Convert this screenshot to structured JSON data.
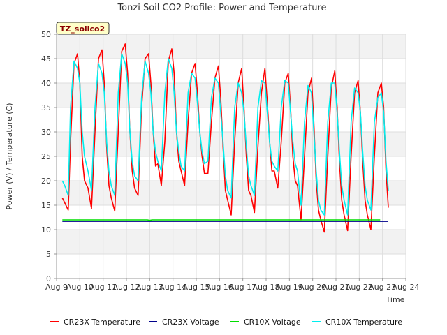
{
  "chart_data": {
    "type": "line",
    "title": "Tonzi Soil CO2 Profile: Power and Temperature",
    "tag": "TZ_soilco2",
    "xlabel": "Time",
    "ylabel": "Power (V) / Temperature (C)",
    "ylim": [
      0,
      50
    ],
    "xlim": [
      9,
      24
    ],
    "yticks": [
      0,
      5,
      10,
      15,
      20,
      25,
      30,
      35,
      40,
      45,
      50
    ],
    "xticks": [
      9,
      10,
      11,
      12,
      13,
      14,
      15,
      16,
      17,
      18,
      19,
      20,
      21,
      22,
      23,
      24
    ],
    "xtick_labels": [
      "Aug 9",
      "Aug 10",
      "Aug 11",
      "Aug 12",
      "Aug 13",
      "Aug 14",
      "Aug 15",
      "Aug 16",
      "Aug 17",
      "Aug 18",
      "Aug 19",
      "Aug 20",
      "Aug 21",
      "Aug 22",
      "Aug 23",
      "Aug 24"
    ],
    "grid": true,
    "legend_position": "bottom",
    "series": [
      {
        "name": "CR23X Temperature",
        "color": "#ff0000",
        "x": [
          9.25,
          9.35,
          9.5,
          9.6,
          9.75,
          9.9,
          10.0,
          10.1,
          10.2,
          10.35,
          10.5,
          10.65,
          10.8,
          10.95,
          11.05,
          11.15,
          11.25,
          11.35,
          11.5,
          11.65,
          11.8,
          11.95,
          12.05,
          12.15,
          12.25,
          12.35,
          12.5,
          12.65,
          12.8,
          12.95,
          13.05,
          13.15,
          13.25,
          13.35,
          13.5,
          13.65,
          13.8,
          13.95,
          14.05,
          14.15,
          14.25,
          14.35,
          14.5,
          14.65,
          14.8,
          14.95,
          15.05,
          15.15,
          15.25,
          15.35,
          15.5,
          15.65,
          15.8,
          15.95,
          16.05,
          16.15,
          16.25,
          16.35,
          16.5,
          16.65,
          16.8,
          16.95,
          17.05,
          17.15,
          17.25,
          17.35,
          17.5,
          17.65,
          17.8,
          17.95,
          18.05,
          18.15,
          18.25,
          18.35,
          18.5,
          18.65,
          18.8,
          18.95,
          19.05,
          19.15,
          19.25,
          19.35,
          19.5,
          19.65,
          19.8,
          19.95,
          20.05,
          20.15,
          20.25,
          20.35,
          20.5,
          20.65,
          20.8,
          20.95,
          21.05,
          21.15,
          21.25,
          21.35,
          21.5,
          21.65,
          21.8,
          21.95,
          22.05,
          22.15,
          22.25,
          22.35,
          22.5,
          22.65,
          22.8,
          22.95,
          23.05,
          23.15,
          23.25
        ],
        "values": [
          16.5,
          15.5,
          14.0,
          28.0,
          44.0,
          46.0,
          40.0,
          25.0,
          20.0,
          18.5,
          14.3,
          30.0,
          45.0,
          46.8,
          40.0,
          27.0,
          19.0,
          16.5,
          13.8,
          30.0,
          46.5,
          48.0,
          42.0,
          30.0,
          22.0,
          18.5,
          17.0,
          35.0,
          45.0,
          46.0,
          40.0,
          30.0,
          23.0,
          23.5,
          19.0,
          28.0,
          44.5,
          47.0,
          42.0,
          30.0,
          24.0,
          22.0,
          19.0,
          32.0,
          42.0,
          44.0,
          38.0,
          30.0,
          25.0,
          21.5,
          21.5,
          32.0,
          41.0,
          43.5,
          37.0,
          27.0,
          18.0,
          16.0,
          13.0,
          28.0,
          40.0,
          43.0,
          35.0,
          25.0,
          18.0,
          17.0,
          13.5,
          27.0,
          38.0,
          43.0,
          36.0,
          28.0,
          22.0,
          22.0,
          18.5,
          28.0,
          40.0,
          42.0,
          35.0,
          25.0,
          20.0,
          19.0,
          12.0,
          25.0,
          38.0,
          41.0,
          32.0,
          20.0,
          14.0,
          12.0,
          9.5,
          25.0,
          39.0,
          42.5,
          35.0,
          24.0,
          16.0,
          13.0,
          9.8,
          25.0,
          38.0,
          40.5,
          34.0,
          24.0,
          16.0,
          13.0,
          10.0,
          25.0,
          38.0,
          40.0,
          35.0,
          22.0,
          14.5
        ]
      },
      {
        "name": "CR23X Voltage",
        "color": "#00008b",
        "x": [
          9.25,
          23.25
        ],
        "values": [
          11.7,
          11.7
        ]
      },
      {
        "name": "CR10X Voltage",
        "color": "#00dd00",
        "x": [
          9.25,
          12.9,
          13.0,
          13.1,
          22.9
        ],
        "values": [
          12.0,
          12.0,
          11.9,
          12.0,
          12.0
        ]
      },
      {
        "name": "CR10X Temperature",
        "color": "#00eeee",
        "x": [
          9.25,
          9.35,
          9.5,
          9.6,
          9.75,
          9.9,
          10.0,
          10.1,
          10.2,
          10.35,
          10.5,
          10.65,
          10.8,
          10.95,
          11.05,
          11.15,
          11.25,
          11.35,
          11.5,
          11.65,
          11.8,
          11.95,
          12.05,
          12.15,
          12.25,
          12.35,
          12.5,
          12.65,
          12.8,
          12.95,
          13.05,
          13.15,
          13.25,
          13.35,
          13.5,
          13.65,
          13.8,
          13.95,
          14.05,
          14.15,
          14.25,
          14.35,
          14.5,
          14.65,
          14.8,
          14.95,
          15.05,
          15.15,
          15.25,
          15.35,
          15.5,
          15.65,
          15.8,
          15.95,
          16.05,
          16.15,
          16.25,
          16.35,
          16.5,
          16.65,
          16.8,
          16.95,
          17.05,
          17.15,
          17.25,
          17.35,
          17.5,
          17.65,
          17.8,
          17.95,
          18.05,
          18.15,
          18.25,
          18.35,
          18.5,
          18.65,
          18.8,
          18.95,
          19.05,
          19.15,
          19.25,
          19.35,
          19.5,
          19.65,
          19.8,
          19.95,
          20.05,
          20.15,
          20.25,
          20.35,
          20.5,
          20.65,
          20.8,
          20.95,
          21.05,
          21.15,
          21.25,
          21.35,
          21.5,
          21.65,
          21.8,
          21.95,
          22.05,
          22.15,
          22.25,
          22.35,
          22.5,
          22.65,
          22.8,
          22.95,
          23.05,
          23.15,
          23.25
        ],
        "values": [
          20.0,
          19.0,
          17.0,
          35.0,
          44.5,
          43.0,
          40.0,
          30.0,
          25.0,
          22.0,
          18.0,
          35.0,
          44.0,
          42.0,
          38.0,
          28.0,
          22.0,
          19.0,
          17.0,
          38.0,
          46.0,
          44.0,
          40.0,
          30.0,
          24.0,
          21.0,
          20.0,
          37.0,
          44.5,
          42.0,
          38.0,
          30.0,
          26.0,
          24.0,
          22.0,
          38.0,
          45.0,
          43.0,
          38.0,
          30.0,
          26.0,
          23.0,
          22.0,
          38.0,
          42.0,
          41.0,
          36.0,
          30.0,
          26.0,
          23.5,
          24.0,
          37.0,
          41.0,
          40.0,
          34.0,
          28.0,
          21.0,
          18.0,
          16.5,
          35.0,
          40.0,
          38.0,
          34.0,
          27.0,
          21.0,
          19.0,
          17.0,
          35.0,
          40.5,
          40.0,
          34.0,
          28.0,
          24.0,
          23.0,
          22.0,
          35.0,
          40.5,
          40.0,
          34.0,
          28.0,
          23.5,
          22.0,
          15.0,
          32.0,
          39.5,
          38.0,
          30.0,
          22.0,
          16.0,
          14.0,
          13.0,
          32.0,
          40.0,
          40.0,
          34.0,
          26.0,
          19.0,
          16.0,
          13.0,
          32.0,
          39.0,
          38.0,
          34.0,
          26.0,
          19.0,
          16.0,
          14.0,
          32.0,
          37.0,
          38.0,
          34.0,
          24.0,
          18.0
        ]
      }
    ]
  }
}
